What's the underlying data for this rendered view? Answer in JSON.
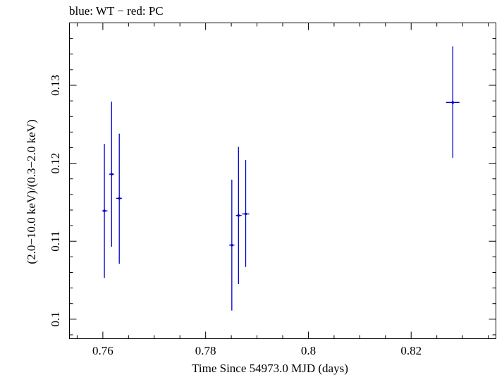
{
  "chart_data": {
    "type": "scatter",
    "title": "blue: WT − red: PC",
    "xlabel": "Time Since 54973.0 MJD (days)",
    "ylabel": "(2.0−10.0 keV)/(0.3−2.0 keV)",
    "xlim": [
      0.7535,
      0.8365
    ],
    "ylim": [
      0.0975,
      0.138
    ],
    "xticks": [
      0.76,
      0.78,
      0.8,
      0.82
    ],
    "xtick_labels": [
      "0.76",
      "0.78",
      "0.8",
      "0.82"
    ],
    "yticks": [
      0.1,
      0.11,
      0.12,
      0.13
    ],
    "ytick_labels": [
      "0.1",
      "0.11",
      "0.12",
      "0.13"
    ],
    "grid": false,
    "series": [
      {
        "color": "#0000cc",
        "points": [
          {
            "x": 0.7603,
            "y": 0.1139,
            "x_low": 0.7599,
            "x_high": 0.7609,
            "y_low": 0.1053,
            "y_high": 0.1225
          },
          {
            "x": 0.7617,
            "y": 0.1186,
            "x_low": 0.7612,
            "x_high": 0.7622,
            "y_low": 0.1093,
            "y_high": 0.1279
          },
          {
            "x": 0.7632,
            "y": 0.1155,
            "x_low": 0.7626,
            "x_high": 0.7637,
            "y_low": 0.1071,
            "y_high": 0.1238
          },
          {
            "x": 0.7851,
            "y": 0.1095,
            "x_low": 0.7846,
            "x_high": 0.7856,
            "y_low": 0.1011,
            "y_high": 0.1179
          },
          {
            "x": 0.7864,
            "y": 0.1133,
            "x_low": 0.7859,
            "x_high": 0.787,
            "y_low": 0.1045,
            "y_high": 0.1221
          },
          {
            "x": 0.7878,
            "y": 0.1135,
            "x_low": 0.7871,
            "x_high": 0.7885,
            "y_low": 0.1067,
            "y_high": 0.1204
          },
          {
            "x": 0.8281,
            "y": 0.1278,
            "x_low": 0.8268,
            "x_high": 0.8294,
            "y_low": 0.1207,
            "y_high": 0.135
          }
        ]
      }
    ]
  }
}
